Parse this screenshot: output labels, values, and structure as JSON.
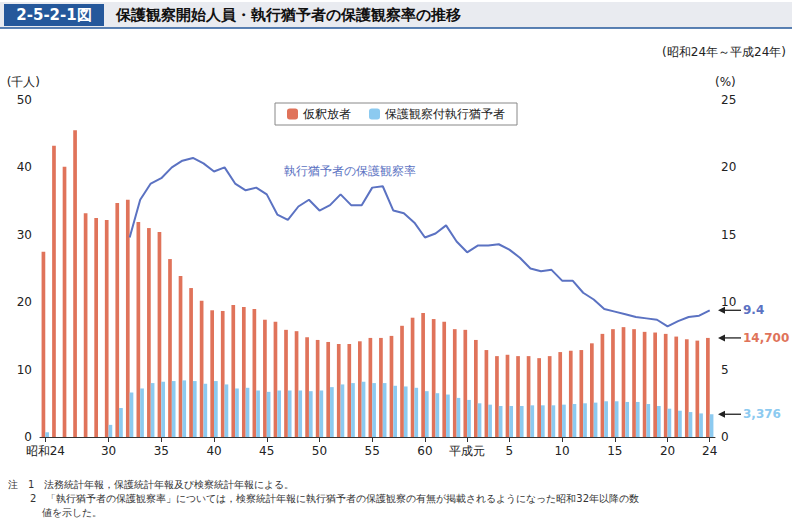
{
  "chart_data": {
    "type": "bar",
    "figure_number": "2-5-2-1図",
    "title": "保護観察開始人員・執行猶予者の保護観察率の推移",
    "subtitle": "(昭和24年～平成24年)",
    "y_label": "(千人)",
    "y2_label": "(%)",
    "notes": [
      "注　1　法務統計年報，保護統計年報及び検察統計年報による。",
      "2　「執行猶予者の保護観察率」については，検察統計年報に執行猶予者の保護観察の有無が掲載されるようになった昭和32年以降の数",
      "値を示した。"
    ],
    "categories": [
      "昭和24",
      null,
      null,
      null,
      null,
      null,
      "30",
      null,
      null,
      null,
      null,
      "35",
      null,
      null,
      null,
      null,
      "40",
      null,
      null,
      null,
      null,
      "45",
      null,
      null,
      null,
      null,
      "50",
      null,
      null,
      null,
      null,
      "55",
      null,
      null,
      null,
      null,
      "60",
      null,
      null,
      null,
      "平成元",
      null,
      null,
      null,
      "5",
      null,
      null,
      null,
      null,
      "10",
      null,
      null,
      null,
      null,
      "15",
      null,
      null,
      null,
      null,
      "20",
      null,
      null,
      null,
      "24"
    ],
    "series": [
      {
        "name": "仮釈放者",
        "type": "bar",
        "color": "#e0735a",
        "values": [
          27.5,
          43.2,
          40.1,
          45.5,
          33.2,
          32.5,
          32.2,
          34.7,
          35.2,
          31.9,
          31.0,
          30.4,
          26.4,
          23.9,
          22.1,
          20.2,
          18.8,
          18.7,
          19.6,
          19.3,
          19.0,
          17.4,
          17.1,
          15.9,
          15.7,
          14.8,
          14.4,
          14.1,
          13.8,
          13.8,
          14.2,
          14.7,
          14.7,
          15.0,
          16.5,
          17.7,
          18.4,
          17.5,
          17.1,
          16.0,
          15.9,
          14.4,
          12.9,
          12.0,
          12.2,
          12.0,
          12.0,
          11.7,
          12.0,
          12.6,
          12.8,
          12.9,
          13.9,
          15.3,
          16.0,
          16.3,
          16.0,
          15.6,
          15.5,
          15.3,
          14.9,
          14.5,
          14.3,
          14.7
        ],
        "value_labels": [
          null,
          null,
          null,
          null,
          null,
          null,
          null,
          null,
          null,
          null,
          null,
          null,
          null,
          null,
          null,
          null,
          null,
          null,
          null,
          null,
          null,
          null,
          null,
          null,
          null,
          null,
          null,
          null,
          null,
          null,
          null,
          null,
          null,
          null,
          null,
          null,
          null,
          null,
          null,
          null,
          null,
          null,
          null,
          null,
          null,
          null,
          null,
          null,
          null,
          null,
          null,
          null,
          null,
          null,
          null,
          null,
          null,
          null,
          null,
          null,
          null,
          null,
          null,
          "14,700"
        ]
      },
      {
        "name": "保護観察付執行猶予者",
        "type": "bar",
        "color": "#8ccaf0",
        "values": [
          0.7,
          null,
          null,
          null,
          null,
          null,
          1.8,
          4.3,
          6.6,
          7.2,
          8.0,
          8.2,
          8.3,
          8.4,
          8.3,
          7.9,
          8.3,
          7.8,
          7.2,
          7.3,
          6.9,
          6.7,
          6.9,
          6.9,
          6.9,
          6.8,
          6.9,
          7.4,
          7.8,
          8.0,
          8.2,
          8.0,
          8.0,
          7.6,
          7.5,
          7.3,
          6.8,
          6.5,
          6.3,
          5.8,
          5.5,
          5.0,
          4.8,
          4.6,
          4.6,
          4.6,
          4.7,
          4.7,
          4.7,
          4.8,
          4.9,
          5.0,
          5.1,
          5.3,
          5.3,
          5.2,
          5.2,
          4.9,
          4.6,
          4.2,
          3.9,
          3.7,
          3.5,
          3.376
        ],
        "value_labels": [
          null,
          null,
          null,
          null,
          null,
          null,
          null,
          null,
          null,
          null,
          null,
          null,
          null,
          null,
          null,
          null,
          null,
          null,
          null,
          null,
          null,
          null,
          null,
          null,
          null,
          null,
          null,
          null,
          null,
          null,
          null,
          null,
          null,
          null,
          null,
          null,
          null,
          null,
          null,
          null,
          null,
          null,
          null,
          null,
          null,
          null,
          null,
          null,
          null,
          null,
          null,
          null,
          null,
          null,
          null,
          null,
          null,
          null,
          null,
          null,
          null,
          null,
          null,
          "3,376"
        ]
      },
      {
        "name": "執行猶予者の保護観察率",
        "type": "line",
        "axis": "y2",
        "color": "#5b72c2",
        "line_style": "solid",
        "values": [
          null,
          null,
          null,
          null,
          null,
          null,
          null,
          null,
          14.8,
          17.6,
          18.8,
          19.2,
          20.0,
          20.5,
          20.7,
          20.3,
          19.7,
          20.0,
          18.8,
          18.3,
          18.5,
          18.0,
          16.5,
          16.1,
          17.1,
          17.6,
          16.8,
          17.2,
          18.0,
          17.2,
          17.2,
          18.5,
          18.6,
          16.8,
          16.6,
          15.9,
          14.8,
          15.1,
          15.7,
          14.5,
          13.7,
          14.2,
          14.2,
          14.3,
          13.9,
          13.3,
          12.5,
          12.3,
          12.4,
          11.6,
          11.6,
          10.7,
          10.2,
          9.5,
          9.3,
          9.1,
          8.9,
          8.8,
          8.7,
          8.2,
          8.6,
          8.9,
          9.0,
          9.4
        ],
        "value_labels": [
          null,
          null,
          null,
          null,
          null,
          null,
          null,
          null,
          null,
          null,
          null,
          null,
          null,
          null,
          null,
          null,
          null,
          null,
          null,
          null,
          null,
          null,
          null,
          null,
          null,
          null,
          null,
          null,
          null,
          null,
          null,
          null,
          null,
          null,
          null,
          null,
          null,
          null,
          null,
          null,
          null,
          null,
          null,
          null,
          null,
          null,
          null,
          null,
          null,
          null,
          null,
          null,
          null,
          null,
          null,
          null,
          null,
          null,
          null,
          null,
          null,
          null,
          null,
          "9.4"
        ]
      }
    ],
    "ylim": [
      0,
      50
    ],
    "yticks": [
      0,
      10,
      20,
      30,
      40,
      50
    ],
    "y2lim": [
      0,
      25
    ],
    "y2ticks": [
      0,
      5,
      10,
      15,
      20,
      25
    ],
    "grid": false,
    "legend": "top"
  }
}
